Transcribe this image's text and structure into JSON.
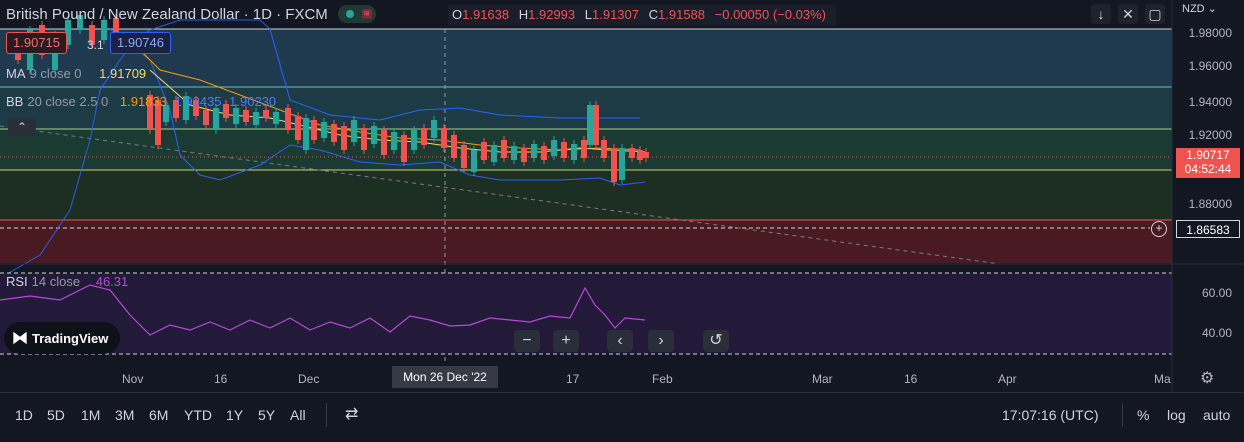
{
  "header": {
    "title": "British Pound / New Zealand Dollar · 1D · FXCM",
    "ohlc": {
      "o_label": "O",
      "o": "1.91638",
      "h_label": "H",
      "h": "1.92993",
      "l_label": "L",
      "l": "1.91307",
      "c_label": "C",
      "c": "1.91588",
      "change": "−0.00050 (−0.03%)"
    },
    "sell_price": "1.90715",
    "spread": "3.1",
    "buy_price": "1.90746"
  },
  "indicators": {
    "ma": {
      "name": "MA",
      "params": "9 close 0",
      "value": "1.91709",
      "color": "#f5d76e"
    },
    "bb": {
      "name": "BB",
      "params": "20 close 2.5 0",
      "basis": "1.91833",
      "upper": "1.93435",
      "lower": "1.90230",
      "basis_color": "#ff9800",
      "band_color": "#2962ff"
    },
    "rsi": {
      "name": "RSI",
      "params": "14 close",
      "value": "46.31",
      "color": "#b54ad6"
    }
  },
  "price_axis": {
    "currency": "NZD",
    "ticks": [
      "1.98000",
      "1.96000",
      "1.94000",
      "1.92000",
      "1.88000"
    ],
    "last_price": "1.90717",
    "countdown": "04:52:44",
    "hline_price": "1.86583",
    "rsi_ticks": [
      "60.00",
      "40.00"
    ]
  },
  "time_axis": {
    "labels": [
      "Nov",
      "16",
      "Dec",
      "17",
      "Feb",
      "Mar",
      "16",
      "Apr",
      "Ma"
    ],
    "crosshair_label": "Mon 26 Dec '22"
  },
  "toolbar": {
    "timeframes": [
      "1D",
      "5D",
      "1M",
      "3M",
      "6M",
      "YTD",
      "1Y",
      "5Y",
      "All"
    ],
    "clock": "17:07:16 (UTC)",
    "percent": "%",
    "log": "log",
    "auto": "auto"
  },
  "logo": "TradingView",
  "colors": {
    "bg": "#131722",
    "up": "#26a69a",
    "down": "#ef5350",
    "accent": "#2962ff"
  }
}
